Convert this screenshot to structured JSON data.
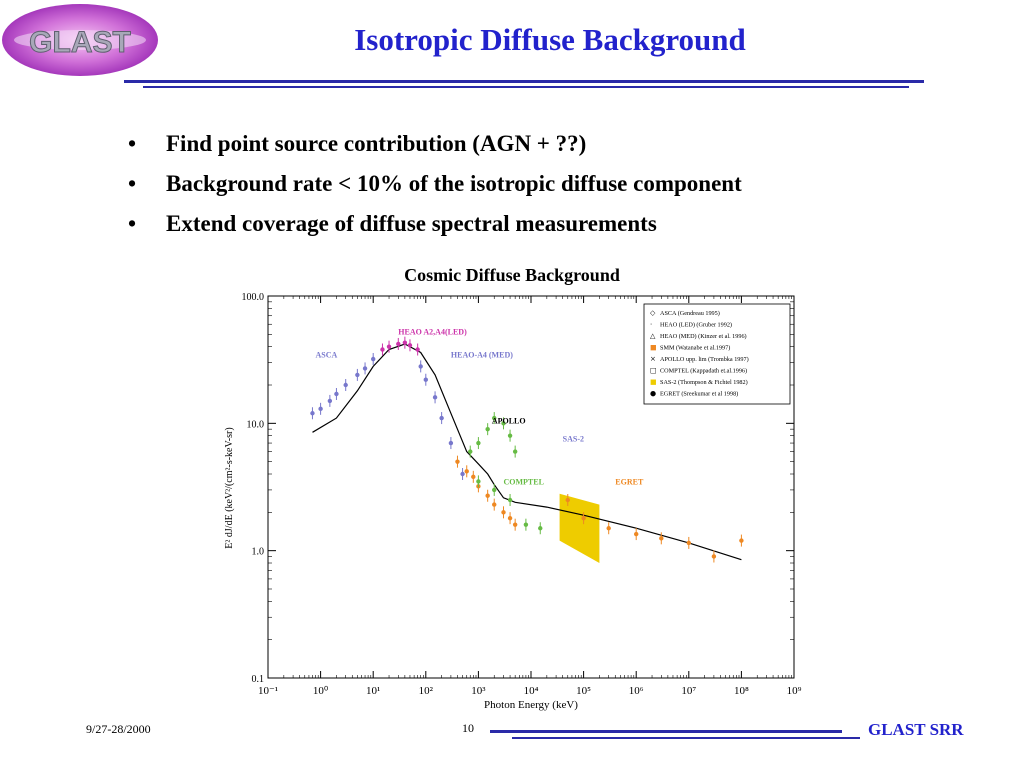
{
  "slide": {
    "logo_text": "GLAST",
    "title": "Isotropic Diffuse Background",
    "bullets": [
      "Find point source contribution (AGN + ??)",
      "Background rate < 10% of the isotropic diffuse component",
      "Extend coverage of diffuse spectral measurements"
    ],
    "footer": {
      "date": "9/27-28/2000",
      "page": "10",
      "brand": "GLAST SRR"
    }
  },
  "colors": {
    "title": "#2222cc",
    "rule": "#2a2aa8",
    "heao_led": "#cc33aa",
    "heao_med": "#7777cc",
    "asca": "#7777cc",
    "smm": "#ee8822",
    "comptel": "#66bb44",
    "egret": "#ee8822",
    "sas2": "#eecc00"
  },
  "chart_data": {
    "type": "scatter",
    "title": "Cosmic Diffuse Background",
    "xlabel": "Photon Energy (keV)",
    "ylabel": "E² dJ/dE (keV²/(cm²-s-keV-sr)",
    "xscale": "log",
    "yscale": "log",
    "xlim": [
      0.1,
      1000000000
    ],
    "ylim": [
      0.1,
      100
    ],
    "x_ticks": [
      "10⁻¹",
      "10⁰",
      "10¹",
      "10²",
      "10³",
      "10⁴",
      "10⁵",
      "10⁶",
      "10⁷",
      "10⁸",
      "10⁹"
    ],
    "y_ticks": [
      "0.1",
      "1.0",
      "10.0",
      "100.0"
    ],
    "legend_position": "top-right",
    "legend": [
      "ASCA (Gendreau 1995)",
      "HEAO (LED) (Gruber 1992)",
      "HEAO (MED) (Kinzer et al. 1996)",
      "SMM (Watanabe et al.1997)",
      "APOLLO upp. lim (Trombka 1997)",
      "COMPTEL (Kappadath et.al.1996)",
      "SAS-2 (Thompson & Fichtel 1982)",
      "EGRET (Sreekumar et al 1998)"
    ],
    "annotations": [
      "HEAO A2,A4(LED)",
      "ASCA",
      "HEAO-A4 (MED)",
      "APOLLO",
      "SAS-2",
      "COMPTEL",
      "EGRET"
    ],
    "series": [
      {
        "name": "ASCA",
        "x": [
          0.7,
          1,
          1.5,
          2,
          3,
          5,
          7,
          10
        ],
        "y": [
          12,
          13,
          15,
          17,
          20,
          24,
          27,
          32
        ]
      },
      {
        "name": "HEAO A2,A4(LED)",
        "x": [
          15,
          20,
          30,
          40,
          50,
          70
        ],
        "y": [
          38,
          40,
          42,
          43,
          41,
          38
        ]
      },
      {
        "name": "HEAO-A4 (MED)",
        "x": [
          80,
          100,
          150,
          200,
          300,
          500
        ],
        "y": [
          28,
          22,
          16,
          11,
          7,
          4
        ]
      },
      {
        "name": "SMM",
        "x": [
          400,
          600,
          800,
          1000,
          1500,
          2000,
          3000,
          4000,
          5000
        ],
        "y": [
          5,
          4.2,
          3.8,
          3.2,
          2.7,
          2.3,
          2.0,
          1.8,
          1.6
        ]
      },
      {
        "name": "APOLLO",
        "x": [
          700,
          1000,
          1500,
          2000,
          3000,
          4000,
          5000
        ],
        "y": [
          6,
          7,
          9,
          11,
          10,
          8,
          6
        ]
      },
      {
        "name": "COMPTEL",
        "x": [
          1000,
          2000,
          4000,
          8000,
          15000
        ],
        "y": [
          3.5,
          3.0,
          2.5,
          1.6,
          1.5
        ]
      },
      {
        "name": "EGRET",
        "x": [
          50000,
          100000,
          300000,
          1000000,
          3000000,
          10000000,
          30000000,
          100000000
        ],
        "y": [
          2.5,
          1.8,
          1.5,
          1.35,
          1.25,
          1.15,
          0.9,
          1.2
        ]
      }
    ],
    "sas2_band": {
      "x": [
        35000,
        200000
      ],
      "y_top": [
        2.8,
        2.3
      ],
      "y_bottom": [
        1.2,
        0.8
      ]
    },
    "model_curve": {
      "x": [
        0.7,
        2,
        5,
        10,
        20,
        40,
        80,
        150,
        300,
        600,
        1000,
        1500,
        2000,
        3000,
        5000,
        20000,
        100000,
        1000000,
        10000000,
        100000000
      ],
      "y": [
        8.5,
        11,
        18,
        28,
        38,
        42,
        36,
        24,
        12,
        6,
        4.8,
        4.0,
        3.3,
        2.6,
        2.4,
        2.2,
        1.9,
        1.5,
        1.15,
        0.85
      ]
    }
  }
}
